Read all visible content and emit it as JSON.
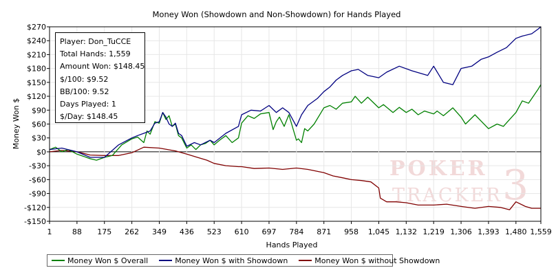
{
  "chart_data": {
    "type": "line",
    "title": "Money Won (Showdown and Non-Showdown) for Hands Played",
    "xlabel": "Hands Played",
    "ylabel": "Money Won $",
    "xlim": [
      1,
      1559
    ],
    "ylim": [
      -150,
      270
    ],
    "x_ticks": [
      1,
      88,
      175,
      262,
      349,
      436,
      523,
      610,
      697,
      784,
      871,
      958,
      1045,
      1132,
      1219,
      1306,
      1393,
      1480,
      1559
    ],
    "x_tick_labels": [
      "1",
      "88",
      "175",
      "262",
      "349",
      "436",
      "523",
      "610",
      "697",
      "784",
      "871",
      "958",
      "1,045",
      "1,132",
      "1,219",
      "1,306",
      "1,393",
      "1,480",
      "1,559"
    ],
    "y_ticks": [
      -150,
      -120,
      -90,
      -60,
      -30,
      0,
      30,
      60,
      90,
      120,
      150,
      180,
      210,
      240,
      270
    ],
    "y_tick_labels": [
      "-$150",
      "-$120",
      "-$90",
      "-$60",
      "-$30",
      "$0",
      "$30",
      "$60",
      "$90",
      "$120",
      "$150",
      "$180",
      "$210",
      "$240",
      "$270"
    ],
    "grid": true,
    "legend_position": "bottom",
    "series": [
      {
        "name": "Money Won $ Overall",
        "color": "#008000",
        "x": [
          1,
          20,
          40,
          60,
          88,
          110,
          130,
          150,
          175,
          200,
          230,
          262,
          280,
          300,
          310,
          320,
          335,
          349,
          360,
          370,
          380,
          390,
          400,
          410,
          420,
          436,
          450,
          465,
          480,
          495,
          510,
          523,
          540,
          560,
          580,
          600,
          610,
          630,
          650,
          670,
          697,
          710,
          720,
          730,
          745,
          760,
          784,
          790,
          800,
          810,
          820,
          840,
          871,
          890,
          910,
          930,
          958,
          970,
          990,
          1010,
          1045,
          1060,
          1090,
          1110,
          1132,
          1150,
          1170,
          1190,
          1219,
          1230,
          1250,
          1280,
          1306,
          1320,
          1350,
          1393,
          1420,
          1440,
          1460,
          1480,
          1500,
          1520,
          1540,
          1550,
          1559
        ],
        "y": [
          5,
          10,
          0,
          5,
          -5,
          -10,
          -15,
          -18,
          -12,
          -8,
          15,
          28,
          32,
          20,
          45,
          38,
          65,
          62,
          85,
          70,
          78,
          55,
          60,
          35,
          30,
          8,
          15,
          5,
          15,
          18,
          25,
          15,
          25,
          35,
          20,
          30,
          62,
          78,
          72,
          82,
          85,
          48,
          65,
          75,
          55,
          80,
          25,
          28,
          20,
          50,
          45,
          60,
          95,
          100,
          92,
          105,
          108,
          120,
          105,
          118,
          95,
          102,
          85,
          96,
          85,
          92,
          80,
          88,
          82,
          88,
          78,
          95,
          75,
          60,
          80,
          50,
          60,
          55,
          70,
          85,
          110,
          105,
          125,
          135,
          145
        ]
      },
      {
        "name": "Money Won $ with Showdown",
        "color": "#000080",
        "x": [
          1,
          40,
          88,
          130,
          175,
          220,
          262,
          280,
          300,
          320,
          335,
          349,
          360,
          370,
          380,
          390,
          400,
          410,
          420,
          436,
          460,
          480,
          510,
          523,
          560,
          600,
          610,
          640,
          670,
          697,
          720,
          740,
          760,
          784,
          800,
          820,
          850,
          871,
          890,
          910,
          930,
          958,
          980,
          1010,
          1045,
          1070,
          1110,
          1150,
          1200,
          1219,
          1250,
          1280,
          1306,
          1340,
          1370,
          1393,
          1420,
          1450,
          1480,
          1500,
          1530,
          1550,
          1559
        ],
        "y": [
          5,
          8,
          0,
          -12,
          -12,
          15,
          30,
          35,
          40,
          45,
          62,
          65,
          85,
          75,
          60,
          55,
          62,
          40,
          35,
          12,
          20,
          15,
          25,
          20,
          40,
          55,
          80,
          90,
          88,
          100,
          85,
          95,
          85,
          55,
          80,
          100,
          115,
          130,
          140,
          155,
          165,
          175,
          178,
          165,
          160,
          172,
          185,
          175,
          165,
          185,
          150,
          145,
          180,
          185,
          200,
          205,
          215,
          225,
          245,
          250,
          255,
          265,
          270
        ]
      },
      {
        "name": "Money Won $ without Showdown",
        "color": "#800000",
        "x": [
          1,
          40,
          88,
          130,
          175,
          220,
          262,
          300,
          349,
          400,
          436,
          470,
          500,
          523,
          560,
          600,
          610,
          650,
          697,
          740,
          784,
          820,
          871,
          900,
          930,
          958,
          990,
          1020,
          1045,
          1050,
          1070,
          1100,
          1132,
          1170,
          1219,
          1260,
          1306,
          1350,
          1393,
          1430,
          1460,
          1480,
          1510,
          1530,
          1559
        ],
        "y": [
          0,
          3,
          0,
          -7,
          -8,
          -8,
          -2,
          10,
          8,
          2,
          -5,
          -12,
          -18,
          -25,
          -30,
          -32,
          -32,
          -36,
          -35,
          -38,
          -35,
          -38,
          -45,
          -52,
          -56,
          -60,
          -62,
          -65,
          -78,
          -100,
          -108,
          -108,
          -110,
          -115,
          -115,
          -113,
          -118,
          -122,
          -118,
          -120,
          -125,
          -108,
          -118,
          -122,
          -122
        ]
      }
    ]
  },
  "stats_box": {
    "player": "Player: Don_TuCCE",
    "total_hands": "Total Hands: 1,559",
    "amount_won": "Amount Won: $148.45",
    "per_100_dollars": "$/100: $9.52",
    "bb_per_100": "BB/100: 9.52",
    "days_played": "Days Played: 1",
    "per_day": "$/Day: $148.45"
  },
  "watermark": {
    "line1": "POKER",
    "line2": "TRACKER",
    "mark": "3"
  }
}
